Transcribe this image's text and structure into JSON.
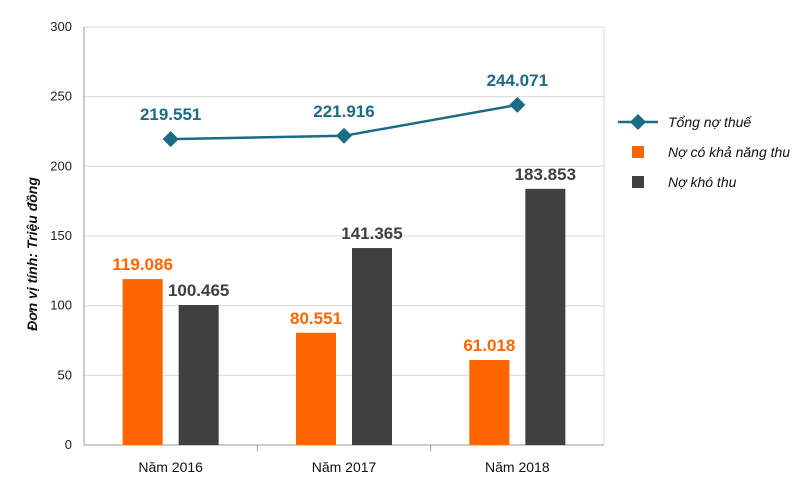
{
  "chart_data": {
    "type": "bar+line",
    "ylabel": "Đơn vị tính: Triệu đồng",
    "ylim": [
      0,
      300
    ],
    "yticks": [
      0,
      50,
      100,
      150,
      200,
      250,
      300
    ],
    "categories": [
      "Năm 2016",
      "Năm 2017",
      "Năm 2018"
    ],
    "bar_series": [
      {
        "name": "Nợ có khả năng thu",
        "color": "#ff6600",
        "values": [
          119.086,
          80.551,
          61.018
        ],
        "labels": [
          "119.086",
          "80.551",
          "61.018"
        ]
      },
      {
        "name": "Nợ khó thu",
        "color": "#404040",
        "values": [
          100.465,
          141.365,
          183.853
        ],
        "labels": [
          "100.465",
          "141.365",
          "183.853"
        ]
      }
    ],
    "line_series": {
      "name": "Tổng nợ thuế",
      "color": "#1a6b84",
      "values": [
        219.551,
        221.916,
        244.071
      ],
      "labels": [
        "219.551",
        "221.916",
        "244.071"
      ]
    },
    "legend": [
      "Tổng nợ thuế",
      "Nợ có khả năng thu",
      "Nợ khó thu"
    ],
    "legend_position": "right",
    "grid": true
  }
}
